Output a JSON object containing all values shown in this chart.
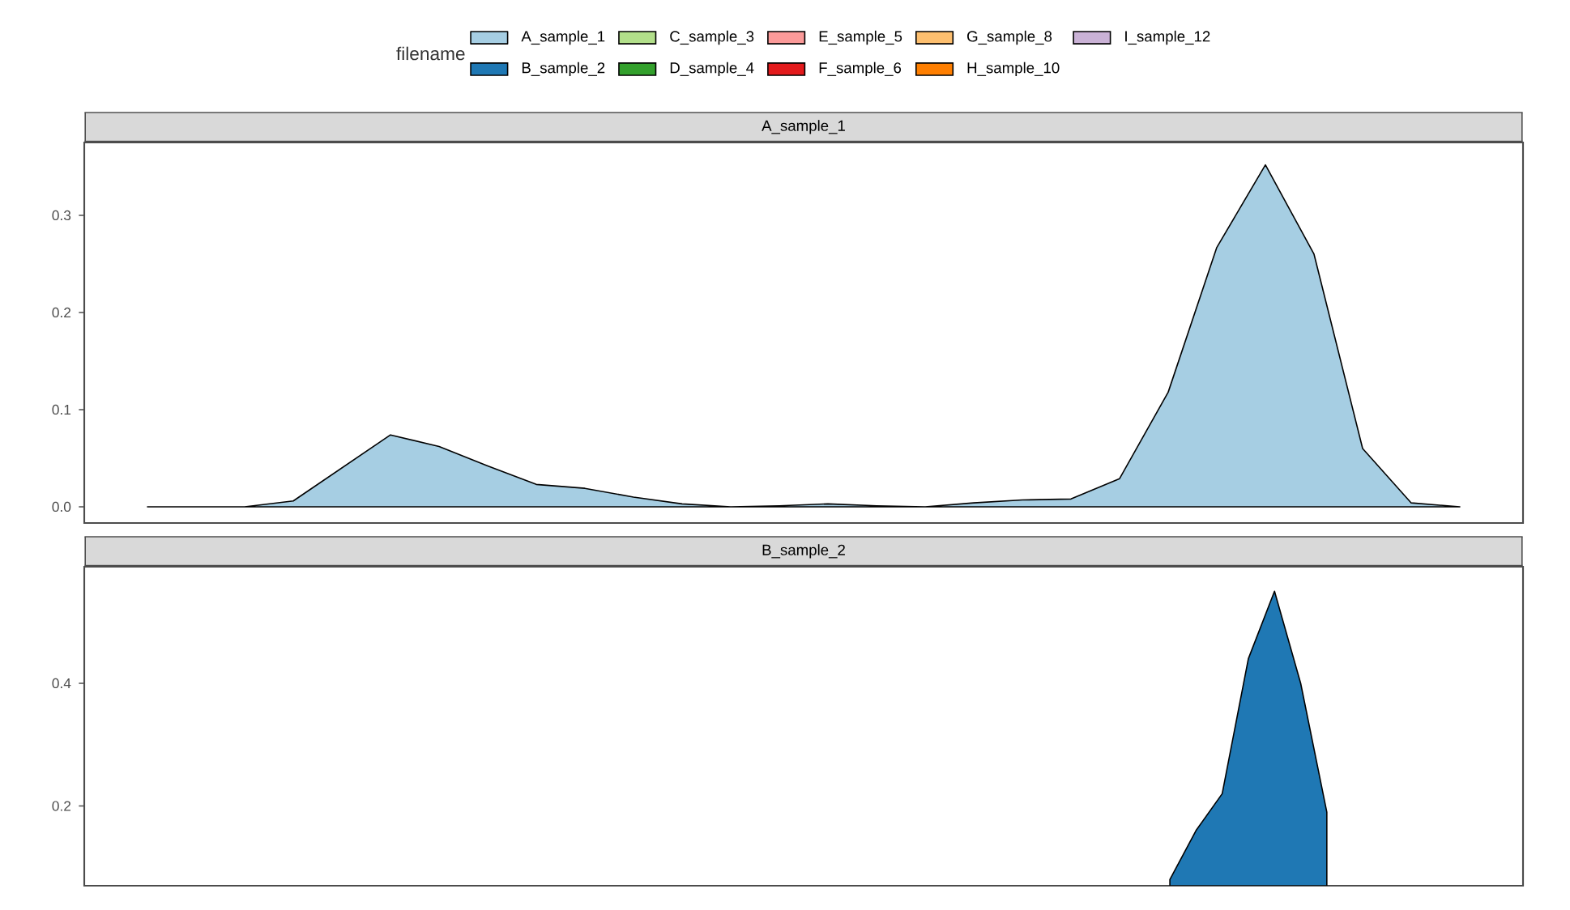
{
  "chart_data": [
    {
      "type": "area",
      "title": "A_sample_1",
      "legend_title": "filename",
      "legend": "top",
      "categories": [
        null,
        null,
        null,
        null,
        null,
        null,
        null,
        null,
        null,
        null,
        null,
        null,
        null,
        null,
        null,
        null,
        null,
        null,
        null,
        null,
        null,
        null,
        null,
        null,
        null,
        null,
        null,
        null
      ],
      "ylim": [
        -0.0167,
        0.375
      ],
      "yticks": [
        {
          "value": 0,
          "label": "0.0"
        },
        {
          "value": 0.1,
          "label": "0.1"
        },
        {
          "value": 0.2,
          "label": "0.2"
        },
        {
          "value": 0.3,
          "label": "0.3"
        }
      ],
      "series": [
        {
          "name": "A_sample_1",
          "color": "#a6cee3",
          "values": [
            0,
            0,
            0,
            0.006,
            0.04,
            0.074,
            0.062,
            0.042,
            0.023,
            0.019,
            0.01,
            0.003,
            0,
            0.001,
            0.003,
            0.001,
            0,
            0.004,
            0.007,
            0.008,
            0.029,
            0.118,
            0.267,
            0.352,
            0.26,
            0.06,
            0.004,
            0
          ]
        },
        {
          "name": "B_sample_2",
          "color": "#1f78b4",
          "values": [
            null,
            null,
            null,
            null,
            null,
            null,
            null,
            null,
            null,
            null,
            null,
            null,
            null,
            null,
            null,
            null,
            null,
            null,
            null,
            null,
            null,
            null,
            null,
            null,
            null,
            null,
            null,
            null
          ]
        },
        {
          "name": "C_sample_3",
          "color": "#b2df8a",
          "values": [
            null,
            null,
            null,
            null,
            null,
            null,
            null,
            null,
            null,
            null,
            null,
            null,
            null,
            null,
            null,
            null,
            null,
            null,
            null,
            null,
            null,
            null,
            null,
            null,
            null,
            null,
            null,
            null
          ]
        },
        {
          "name": "D_sample_4",
          "color": "#33a02c",
          "values": [
            null,
            null,
            null,
            null,
            null,
            null,
            null,
            null,
            null,
            null,
            null,
            null,
            null,
            null,
            null,
            null,
            null,
            null,
            null,
            null,
            null,
            null,
            null,
            null,
            null,
            null,
            null,
            null
          ]
        },
        {
          "name": "E_sample_5",
          "color": "#fb9a99",
          "values": [
            null,
            null,
            null,
            null,
            null,
            null,
            null,
            null,
            null,
            null,
            null,
            null,
            null,
            null,
            null,
            null,
            null,
            null,
            null,
            null,
            null,
            null,
            null,
            null,
            null,
            null,
            null,
            null
          ]
        },
        {
          "name": "F_sample_6",
          "color": "#e31a1c",
          "values": [
            null,
            null,
            null,
            null,
            null,
            null,
            null,
            null,
            null,
            null,
            null,
            null,
            null,
            null,
            null,
            null,
            null,
            null,
            null,
            null,
            null,
            null,
            null,
            null,
            null,
            null,
            null,
            null
          ]
        },
        {
          "name": "G_sample_8",
          "color": "#fdbf6f",
          "values": [
            null,
            null,
            null,
            null,
            null,
            null,
            null,
            null,
            null,
            null,
            null,
            null,
            null,
            null,
            null,
            null,
            null,
            null,
            null,
            null,
            null,
            null,
            null,
            null,
            null,
            null,
            null,
            null
          ]
        },
        {
          "name": "H_sample_10",
          "color": "#ff7f00",
          "values": [
            null,
            null,
            null,
            null,
            null,
            null,
            null,
            null,
            null,
            null,
            null,
            null,
            null,
            null,
            null,
            null,
            null,
            null,
            null,
            null,
            null,
            null,
            null,
            null,
            null,
            null,
            null,
            null
          ]
        },
        {
          "name": "I_sample_12",
          "color": "#cab2d6",
          "values": [
            null,
            null,
            null,
            null,
            null,
            null,
            null,
            null,
            null,
            null,
            null,
            null,
            null,
            null,
            null,
            null,
            null,
            null,
            null,
            null,
            null,
            null,
            null,
            null,
            null,
            null,
            null,
            null
          ]
        }
      ]
    },
    {
      "type": "area",
      "title": "B_sample_2",
      "categories": [
        null,
        null,
        null,
        null,
        null,
        null,
        null,
        null,
        null,
        null,
        null,
        null,
        null,
        null,
        null,
        null,
        null,
        null,
        null,
        null,
        null,
        null,
        null,
        null,
        null,
        null,
        null,
        null,
        null,
        null,
        null,
        null,
        null,
        null,
        null,
        null,
        null,
        null,
        null,
        null,
        null,
        null,
        null,
        null,
        null,
        null,
        null,
        null,
        null,
        null,
        null,
        null,
        null,
        null,
        null
      ],
      "ylim": [
        0.07,
        0.59
      ],
      "yticks": [
        {
          "value": 0.2,
          "label": "0.2"
        },
        {
          "value": 0.4,
          "label": "0.4"
        }
      ],
      "series": [
        {
          "color": "#1f78b4",
          "values": [
            null,
            null,
            null,
            null,
            null,
            null,
            null,
            null,
            null,
            null,
            null,
            null,
            null,
            null,
            null,
            null,
            null,
            null,
            null,
            null,
            null,
            null,
            null,
            null,
            null,
            null,
            null,
            null,
            null,
            null,
            null,
            null,
            null,
            null,
            null,
            null,
            null,
            null,
            null,
            null,
            null,
            0.08,
            0.16,
            0.22,
            0.44,
            0.55,
            0.4,
            0.19,
            null,
            null,
            null,
            null,
            null,
            null,
            null
          ]
        }
      ]
    }
  ]
}
